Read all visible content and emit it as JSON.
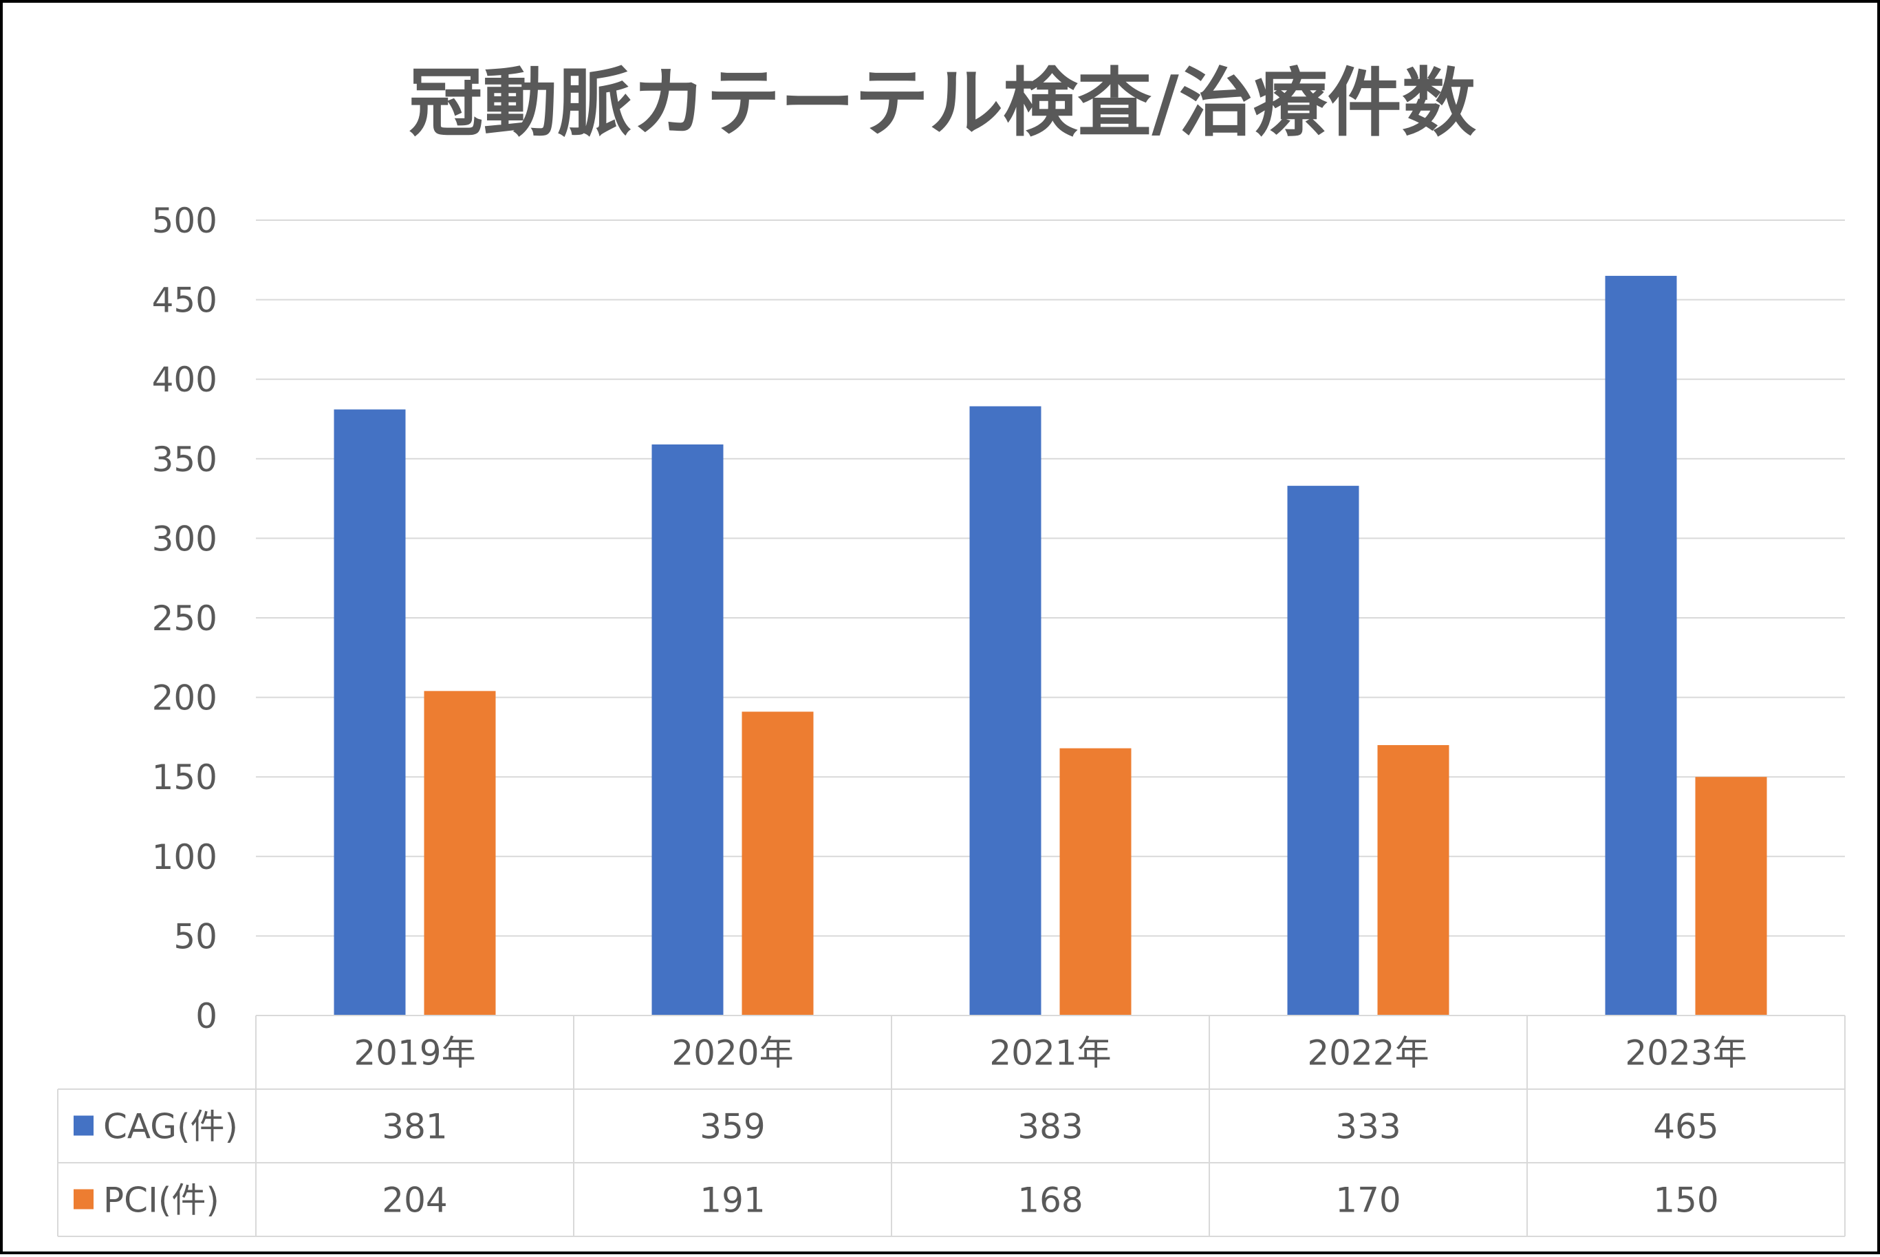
{
  "chart_data": {
    "type": "bar",
    "title": "冠動脈カテーテル検査/治療件数",
    "categories": [
      "2019年",
      "2020年",
      "2021年",
      "2022年",
      "2023年"
    ],
    "series": [
      {
        "name": "CAG(件)",
        "values": [
          381,
          359,
          383,
          333,
          465
        ],
        "color": "#4472C4"
      },
      {
        "name": "PCI(件)",
        "values": [
          204,
          191,
          168,
          170,
          150
        ],
        "color": "#ED7D31"
      }
    ],
    "ylim": [
      0,
      500
    ],
    "yticks": [
      "0",
      "50",
      "100",
      "150",
      "200",
      "250",
      "300",
      "350",
      "400",
      "450",
      "500"
    ],
    "grid": true,
    "legend": "data-table",
    "data_table": true,
    "gridline_color": "#D9D9D9",
    "text_color": "#595959"
  }
}
